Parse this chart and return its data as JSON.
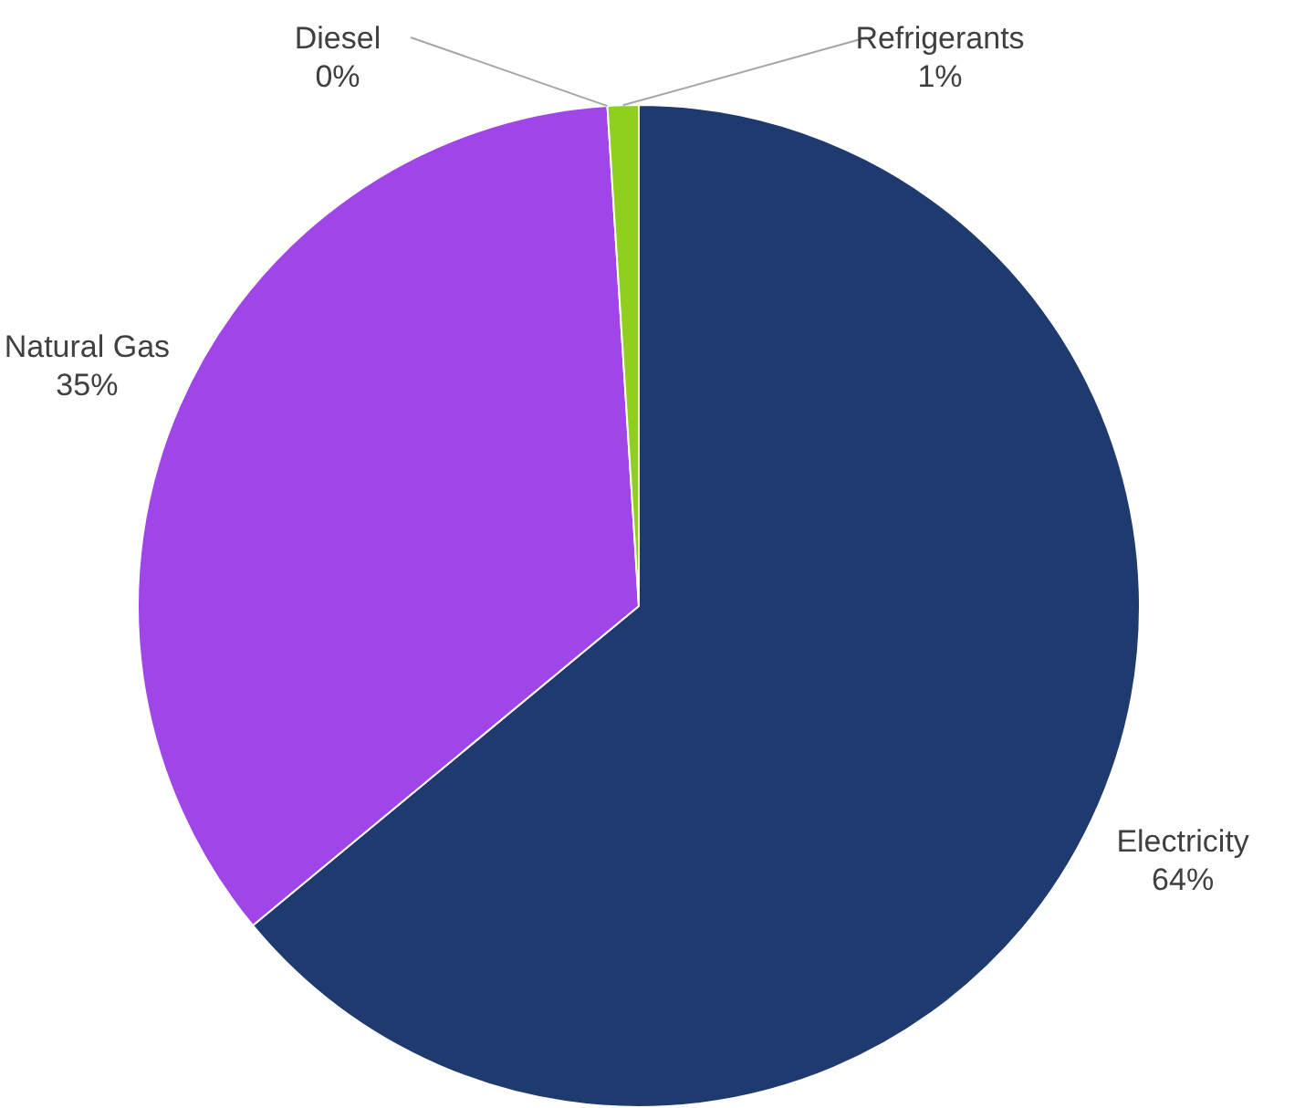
{
  "chart_data": {
    "type": "pie",
    "categories": [
      "Electricity",
      "Natural Gas",
      "Diesel",
      "Refrigerants"
    ],
    "values": [
      64,
      35,
      0,
      1
    ],
    "colors": [
      "#1f3a6e",
      "#a046e8",
      "#7f7f7f",
      "#8fcf1e"
    ],
    "value_labels": [
      "64%",
      "35%",
      "0%",
      "1%"
    ],
    "legend": false
  }
}
